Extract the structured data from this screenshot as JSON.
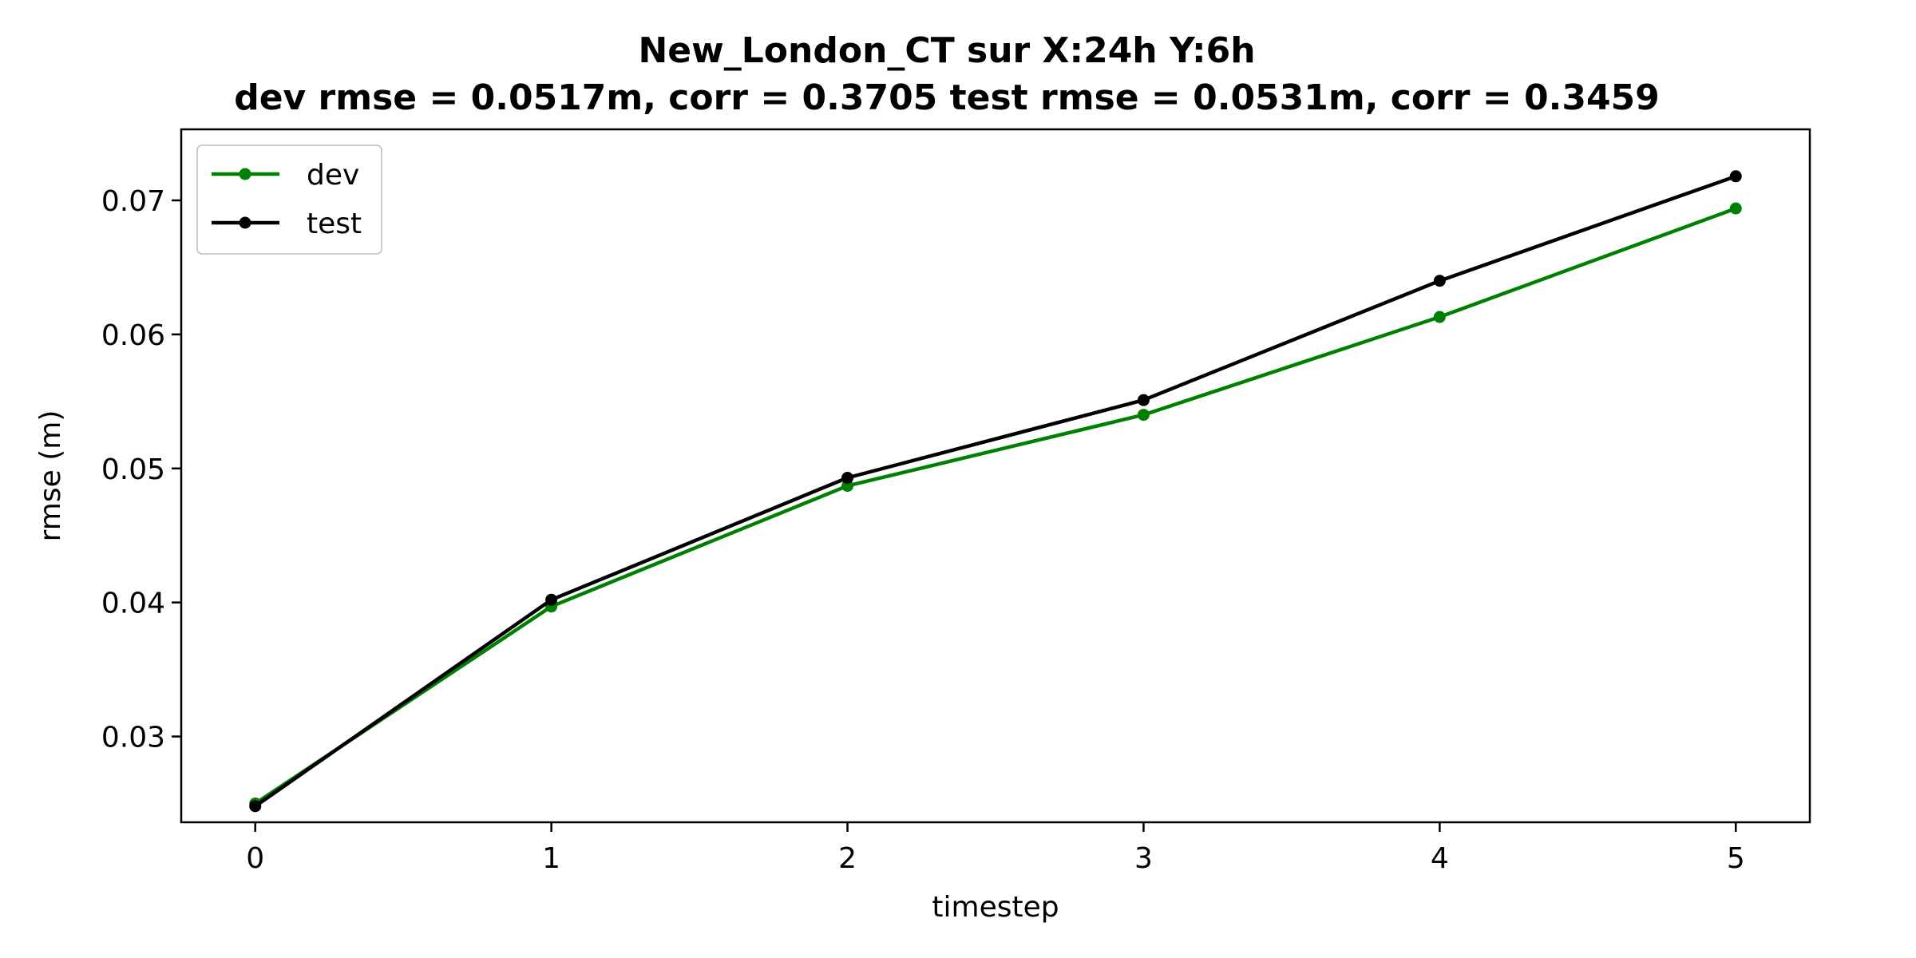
{
  "chart_data": {
    "type": "line",
    "title_line1": "New_London_CT   sur   X:24h   Y:6h",
    "title_line2": "dev rmse = 0.0517m, corr = 0.3705   test rmse = 0.0531m, corr = 0.3459",
    "xlabel": "timestep",
    "ylabel": "rmse (m)",
    "x": [
      0,
      1,
      2,
      3,
      4,
      5
    ],
    "x_ticks": [
      "0",
      "1",
      "2",
      "3",
      "4",
      "5"
    ],
    "xlim": [
      -0.25,
      5.25
    ],
    "y_ticks": [
      "0.03",
      "0.04",
      "0.05",
      "0.06",
      "0.07"
    ],
    "ylim": [
      0.0236,
      0.0753
    ],
    "grid": false,
    "legend_position": "upper left",
    "series": [
      {
        "name": "dev",
        "color": "#008000",
        "values": [
          0.025,
          0.0397,
          0.0487,
          0.054,
          0.0613,
          0.0694
        ]
      },
      {
        "name": "test",
        "color": "#000000",
        "values": [
          0.0248,
          0.0402,
          0.0493,
          0.0551,
          0.064,
          0.0718
        ]
      }
    ]
  }
}
